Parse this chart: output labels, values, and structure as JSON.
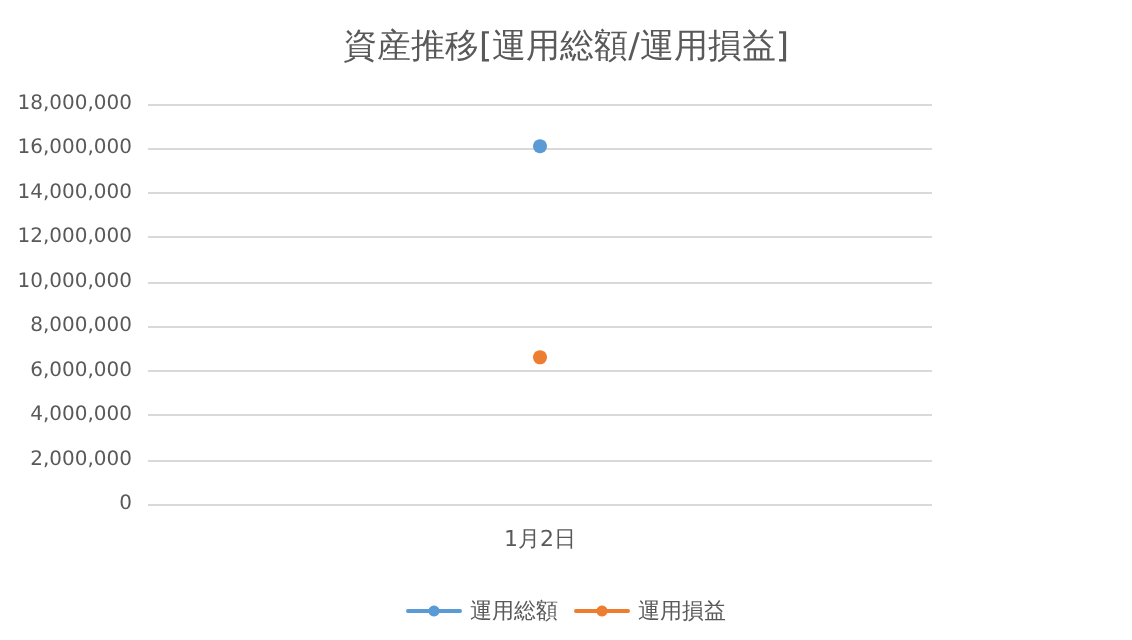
{
  "chart_data": {
    "type": "line",
    "title": "資産推移[運用総額/運用損益]",
    "categories": [
      "1月2日"
    ],
    "series": [
      {
        "name": "運用総額",
        "color": "#5b9bd5",
        "values": [
          16100000
        ]
      },
      {
        "name": "運用損益",
        "color": "#ed7d31",
        "values": [
          6600000
        ]
      }
    ],
    "ylim": [
      0,
      18000000
    ],
    "yticks": [
      {
        "value": 0,
        "label": "0"
      },
      {
        "value": 2000000,
        "label": "2,000,000"
      },
      {
        "value": 4000000,
        "label": "4,000,000"
      },
      {
        "value": 6000000,
        "label": "6,000,000"
      },
      {
        "value": 8000000,
        "label": "8,000,000"
      },
      {
        "value": 10000000,
        "label": "10,000,000"
      },
      {
        "value": 12000000,
        "label": "12,000,000"
      },
      {
        "value": 14000000,
        "label": "14,000,000"
      },
      {
        "value": 16000000,
        "label": "16,000,000"
      },
      {
        "value": 18000000,
        "label": "18,000,000"
      }
    ],
    "grid": "y",
    "legend": "bottom",
    "marker": "circle",
    "line_style": "solid"
  }
}
